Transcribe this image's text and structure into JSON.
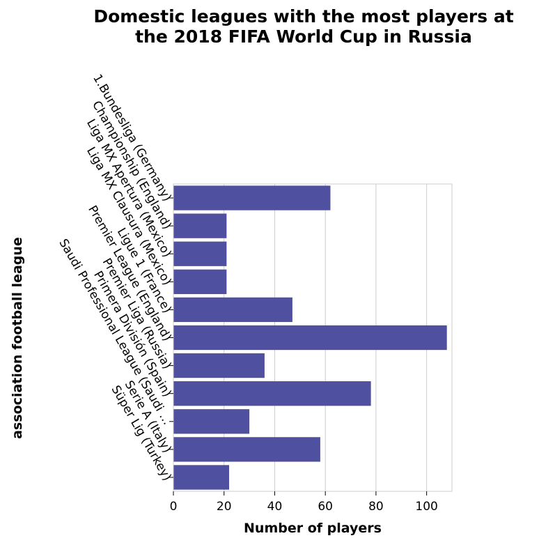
{
  "chart_data": {
    "type": "bar",
    "orientation": "horizontal",
    "title": "Domestic leagues with the most players at the 2018 FIFA World Cup in Russia",
    "title_lines": [
      "Domestic leagues with the most players at",
      "the 2018 FIFA World Cup in Russia"
    ],
    "xlabel": "Number of players",
    "ylabel": "association football league",
    "categories": [
      "1.Bundesliga (Germany)",
      "Championship (England)",
      "Liga MX Apertura (Mexico)",
      "Liga MX Clausura (Mexico)",
      "Ligue 1 (France)",
      "Premier League (England)",
      "Premier Liga (Russia)",
      "Primera División (Spain)",
      "Saudi Professional League (Saudi …",
      "Serie A (Italy)",
      "Süper Lig (Turkey)"
    ],
    "values": [
      62,
      21,
      21,
      21,
      47,
      108,
      36,
      78,
      30,
      58,
      22
    ],
    "xlim": [
      0,
      110
    ],
    "xticks": [
      0,
      20,
      40,
      60,
      80,
      100
    ],
    "grid": true,
    "bar_color": "#5050a0"
  }
}
